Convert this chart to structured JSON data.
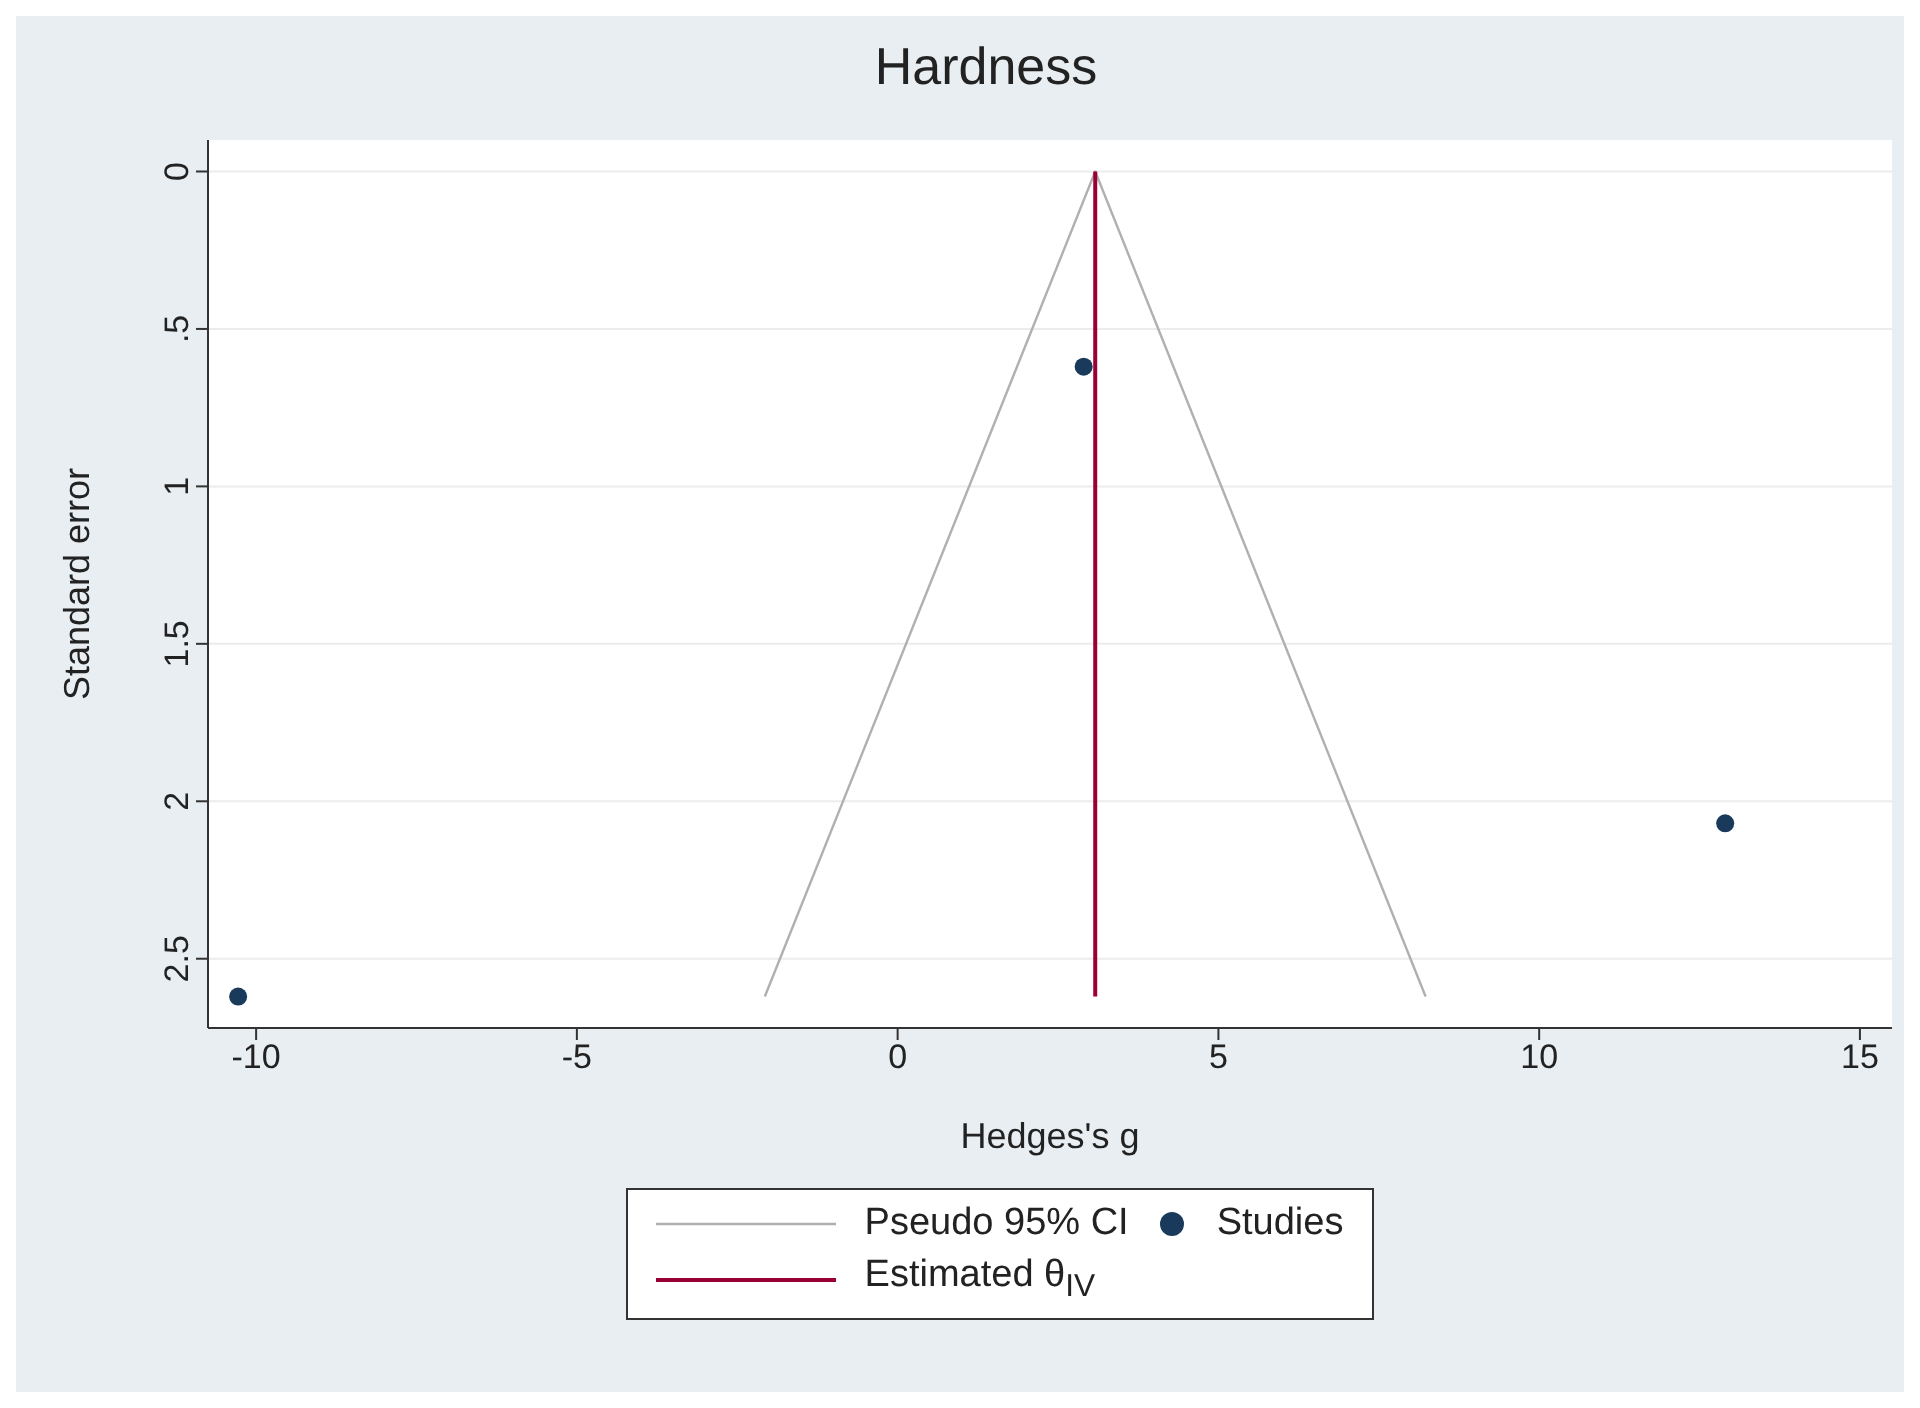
{
  "chart_data": {
    "type": "scatter",
    "title": "Hardness",
    "xlabel": "Hedges's g",
    "ylabel": "Standard error",
    "series": [
      {
        "name": "Pseudo 95% CI",
        "type": "line",
        "marker": "none",
        "color": "#b0b0b0",
        "x": [
          -2.07,
          3.08,
          8.23
        ],
        "values": [
          2.62,
          0,
          2.62
        ]
      },
      {
        "name": "Studies",
        "marker": "circle",
        "color": "#1a3a5c",
        "x": [
          2.9,
          12.9,
          -10.28
        ],
        "values": [
          0.62,
          2.07,
          2.62
        ]
      },
      {
        "name": "Estimated θ$_{IV}$",
        "type": "line",
        "marker": "none",
        "color": "#990033",
        "x": [
          3.08,
          3.08
        ],
        "values": [
          0,
          2.62
        ]
      }
    ],
    "xlim": [
      -10.75,
      15.5
    ],
    "xticks": [
      -10,
      -5,
      0,
      5,
      10,
      15
    ],
    "ylim": [
      2.72,
      -0.1
    ],
    "yticks": [
      0,
      {
        "value": 0.5,
        "label": ".5"
      },
      1,
      1.5,
      2,
      2.5
    ],
    "grid": "y",
    "legend": "bottom"
  }
}
